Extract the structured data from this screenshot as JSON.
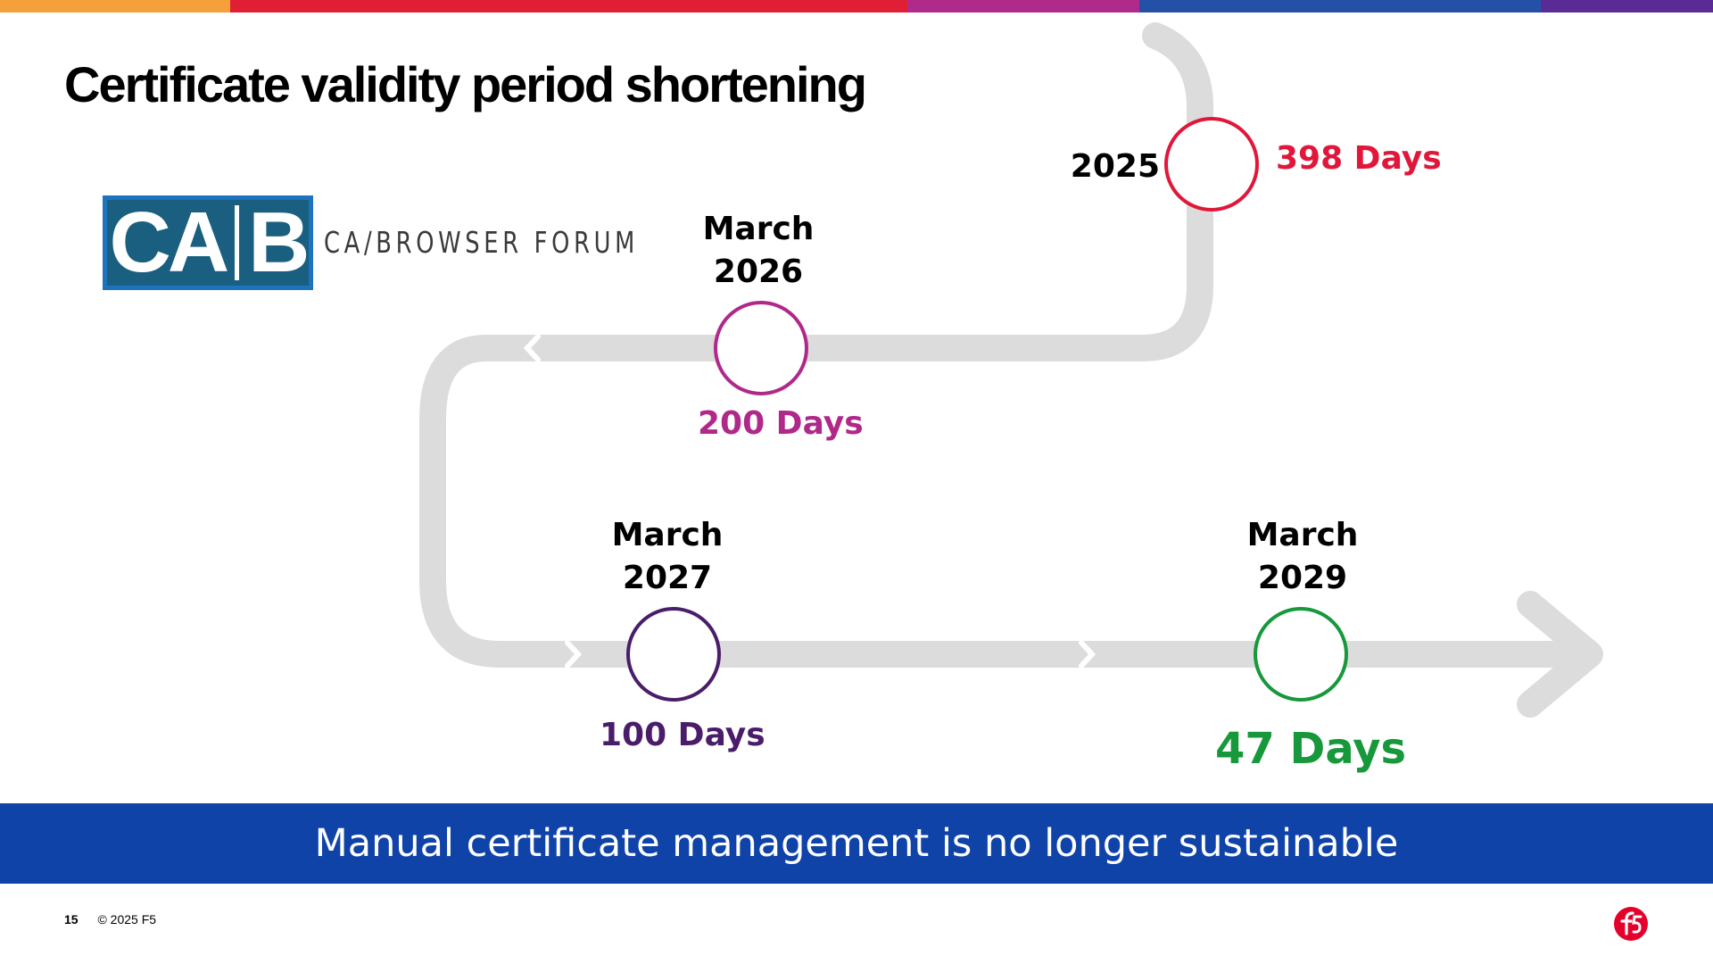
{
  "slide": {
    "title": "Certificate validity period shortening",
    "banner": "Manual certificate management is no longer sustainable",
    "page_number": "15",
    "copyright": "© 2025 F5"
  },
  "logo": {
    "cab_left": "CA",
    "cab_right": "B",
    "org_name": "CA/BROWSER FORUM"
  },
  "colors": {
    "road": "#dcdcdc",
    "banner": "#0f43a8",
    "milestone_2025": "#e0173a",
    "milestone_2026": "#b0288a",
    "milestone_2027": "#4a1d6b",
    "milestone_2029": "#17983a",
    "f5": "#e4002b"
  },
  "top_bar_colors": [
    "#f5a03a",
    "#e01f35",
    "#b02a8c",
    "#2451a8",
    "#5a2b94"
  ],
  "milestones": [
    {
      "date_line1": "",
      "date_line2": "2025",
      "validity": "398 Days"
    },
    {
      "date_line1": "March",
      "date_line2": "2026",
      "validity": "200 Days"
    },
    {
      "date_line1": "March",
      "date_line2": "2027",
      "validity": "100 Days"
    },
    {
      "date_line1": "March",
      "date_line2": "2029",
      "validity": "47 Days"
    }
  ]
}
